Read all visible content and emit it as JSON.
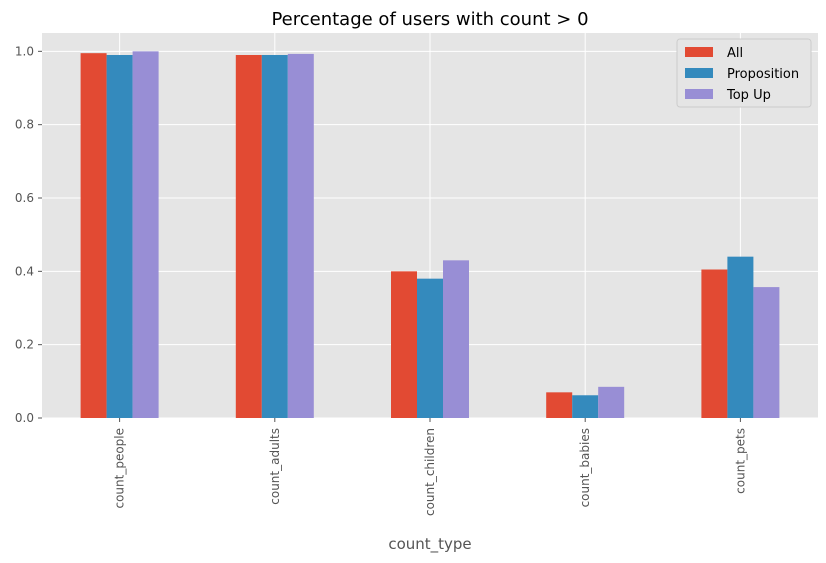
{
  "chart_data": {
    "type": "bar",
    "title": "Percentage of users with count > 0",
    "xlabel": "count_type",
    "ylabel": "",
    "categories": [
      "count_people",
      "count_adults",
      "count_children",
      "count_babies",
      "count_pets"
    ],
    "series": [
      {
        "name": "All",
        "color": "#E24A33",
        "values": [
          0.995,
          0.99,
          0.4,
          0.07,
          0.405
        ]
      },
      {
        "name": "Proposition",
        "color": "#348ABD",
        "values": [
          0.99,
          0.99,
          0.38,
          0.062,
          0.44
        ]
      },
      {
        "name": "Top Up",
        "color": "#988ED5",
        "values": [
          1.0,
          0.993,
          0.43,
          0.085,
          0.357
        ]
      }
    ],
    "ylim": [
      0,
      1.05
    ],
    "yticks": [
      "0.0",
      "0.2",
      "0.4",
      "0.6",
      "0.8",
      "1.0"
    ],
    "grid": true,
    "legend_position": "top-right",
    "background_color": "#E5E5E5",
    "grid_color": "#FFFFFF"
  }
}
